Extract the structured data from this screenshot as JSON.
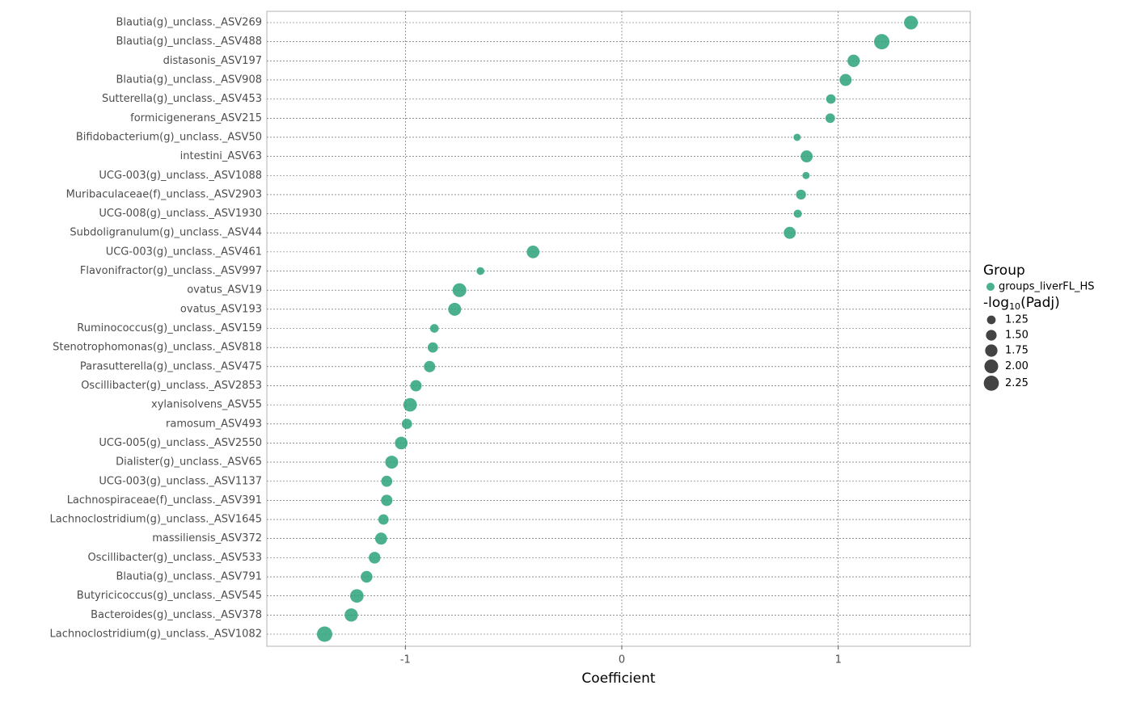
{
  "chart_data": {
    "type": "dot",
    "x_label": "Coefficient",
    "categories": [
      "Blautia(g)_unclass._ASV269",
      "Blautia(g)_unclass._ASV488",
      "distasonis_ASV197",
      "Blautia(g)_unclass._ASV908",
      "Sutterella(g)_unclass._ASV453",
      "formicigenerans_ASV215",
      "Bifidobacterium(g)_unclass._ASV50",
      "intestini_ASV63",
      "UCG-003(g)_unclass._ASV1088",
      "Muribaculaceae(f)_unclass._ASV2903",
      "UCG-008(g)_unclass._ASV1930",
      "Subdoligranulum(g)_unclass._ASV44",
      "UCG-003(g)_unclass._ASV461",
      "Flavonifractor(g)_unclass._ASV997",
      "ovatus_ASV19",
      "ovatus_ASV193",
      "Ruminococcus(g)_unclass._ASV159",
      "Stenotrophomonas(g)_unclass._ASV818",
      "Parasutterella(g)_unclass._ASV475",
      "Oscillibacter(g)_unclass._ASV2853",
      "xylanisolvens_ASV55",
      "ramosum_ASV493",
      "UCG-005(g)_unclass._ASV2550",
      "Dialister(g)_unclass._ASV65",
      "UCG-003(g)_unclass._ASV1137",
      "Lachnospiraceae(f)_unclass._ASV391",
      "Lachnoclostridium(g)_unclass._ASV1645",
      "massiliensis_ASV372",
      "Oscillibacter(g)_unclass._ASV533",
      "Blautia(g)_unclass._ASV791",
      "Butyricicoccus(g)_unclass._ASV545",
      "Bacteroides(g)_unclass._ASV378",
      "Lachnoclostridium(g)_unclass._ASV1082"
    ],
    "series": [
      {
        "name": "groups_liverFL_HS",
        "color": "#2ca27a",
        "values": [
          1.336,
          1.201,
          1.071,
          1.034,
          0.966,
          0.963,
          0.81,
          0.854,
          0.851,
          0.828,
          0.813,
          0.776,
          -0.41,
          -0.653,
          -0.75,
          -0.772,
          -0.866,
          -0.873,
          -0.888,
          -0.951,
          -0.978,
          -0.993,
          -1.019,
          -1.063,
          -1.086,
          -1.086,
          -1.101,
          -1.112,
          -1.142,
          -1.179,
          -1.224,
          -1.25,
          -1.373
        ],
        "sizes": [
          2.0,
          2.3,
          1.75,
          1.7,
          1.35,
          1.35,
          1.1,
          1.7,
          1.1,
          1.4,
          1.2,
          1.7,
          1.8,
          1.15,
          2.0,
          1.85,
          1.25,
          1.45,
          1.6,
          1.6,
          1.95,
          1.45,
          1.8,
          1.85,
          1.55,
          1.6,
          1.45,
          1.7,
          1.65,
          1.65,
          1.95,
          1.9,
          2.3
        ]
      }
    ],
    "xlim": [
      -1.64,
      1.61
    ],
    "xticks": [
      -1,
      0,
      1
    ],
    "legend_title": "Group",
    "size_title": {
      "prefix": "-log",
      "subscript": "10",
      "suffix": "(Padj)"
    },
    "size_ticks": [
      1.25,
      {
        "value": 1.5,
        "label": "1.50"
      },
      1.75,
      {
        "value": 2.0,
        "label": "2.00"
      },
      2.25
    ],
    "grid": true
  }
}
